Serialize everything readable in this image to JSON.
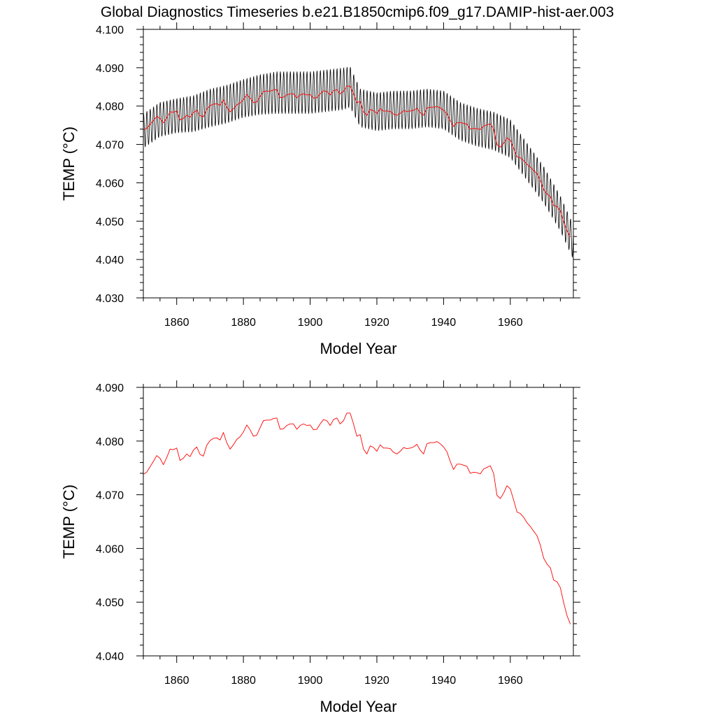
{
  "figure": {
    "title": "Global Diagnostics Timeseries b.e21.B1850cmip6.f09_g17.DAMIP-hist-aer.003"
  },
  "chart_data": [
    {
      "type": "line",
      "xlabel": "Model Year",
      "ylabel": "TEMP (°C)",
      "xlim": [
        1850,
        1978.9
      ],
      "ylim": [
        4.03,
        4.1
      ],
      "xticks": [
        1860,
        1880,
        1900,
        1920,
        1940,
        1960
      ],
      "xtick_labels": [
        "1860",
        "1880",
        "1900",
        "1920",
        "1940",
        "1960"
      ],
      "yticks": [
        4.03,
        4.04,
        4.05,
        4.06,
        4.07,
        4.08,
        4.09,
        4.1
      ],
      "ytick_labels": [
        "4.030",
        "4.040",
        "4.050",
        "4.060",
        "4.070",
        "4.080",
        "4.090",
        "4.100"
      ],
      "grid": false,
      "monthly_seasonal_amplitude_by_year": {
        "x": [
          1850,
          1860,
          1870,
          1880,
          1890,
          1900,
          1910,
          1915,
          1930,
          1940,
          1950,
          1960,
          1970,
          1978
        ],
        "values": [
          0.0045,
          0.0045,
          0.005,
          0.005,
          0.0055,
          0.0055,
          0.0055,
          0.005,
          0.005,
          0.005,
          0.005,
          0.005,
          0.0048,
          0.0045
        ]
      },
      "series": [
        {
          "color": "#000000",
          "style": "monthly",
          "x": [
            1850,
            1855,
            1860,
            1865,
            1870,
            1875,
            1880,
            1885,
            1890,
            1895,
            1900,
            1905,
            1910,
            1912,
            1915,
            1920,
            1925,
            1930,
            1935,
            1940,
            1945,
            1950,
            1955,
            1960,
            1965,
            1970,
            1975,
            1978.9
          ],
          "values": [
            4.0735,
            4.0765,
            4.0775,
            4.078,
            4.0795,
            4.0805,
            4.082,
            4.083,
            4.0835,
            4.0835,
            4.0835,
            4.084,
            4.0845,
            4.085,
            4.0795,
            4.0785,
            4.079,
            4.079,
            4.0795,
            4.079,
            4.076,
            4.0745,
            4.0735,
            4.0715,
            4.0655,
            4.0595,
            4.052,
            4.0445
          ]
        },
        {
          "color": "#ff0000",
          "style": "annual",
          "x": [
            1850,
            1851,
            1852,
            1853,
            1854,
            1855,
            1856,
            1857,
            1858,
            1859,
            1860,
            1861,
            1862,
            1863,
            1864,
            1865,
            1866,
            1867,
            1868,
            1869,
            1870,
            1871,
            1872,
            1873,
            1874,
            1875,
            1876,
            1877,
            1878,
            1879,
            1880,
            1881,
            1882,
            1883,
            1884,
            1885,
            1886,
            1887,
            1888,
            1889,
            1890,
            1891,
            1892,
            1893,
            1894,
            1895,
            1896,
            1897,
            1898,
            1899,
            1900,
            1901,
            1902,
            1903,
            1904,
            1905,
            1906,
            1907,
            1908,
            1909,
            1910,
            1911,
            1912,
            1913,
            1914,
            1915,
            1916,
            1917,
            1918,
            1919,
            1920,
            1921,
            1922,
            1923,
            1924,
            1925,
            1926,
            1927,
            1928,
            1929,
            1930,
            1931,
            1932,
            1933,
            1934,
            1935,
            1936,
            1937,
            1938,
            1939,
            1940,
            1941,
            1942,
            1943,
            1944,
            1945,
            1946,
            1947,
            1948,
            1949,
            1950,
            1951,
            1952,
            1953,
            1954,
            1955,
            1956,
            1957,
            1958,
            1959,
            1960,
            1961,
            1962,
            1963,
            1964,
            1965,
            1966,
            1967,
            1968,
            1969,
            1970,
            1971,
            1972,
            1973,
            1974,
            1975,
            1976,
            1977,
            1978
          ],
          "values": [
            4.0738,
            4.0742,
            4.0752,
            4.0762,
            4.0773,
            4.0768,
            4.0756,
            4.0769,
            4.0785,
            4.0784,
            4.0787,
            4.0764,
            4.0768,
            4.0776,
            4.0771,
            4.0783,
            4.0789,
            4.0775,
            4.0772,
            4.0792,
            4.0801,
            4.0805,
            4.0806,
            4.0802,
            4.0816,
            4.0797,
            4.0785,
            4.0793,
            4.0803,
            4.0808,
            4.0817,
            4.083,
            4.0821,
            4.0809,
            4.0811,
            4.0825,
            4.0838,
            4.0839,
            4.0839,
            4.0842,
            4.0843,
            4.0822,
            4.0823,
            4.0829,
            4.0832,
            4.0832,
            4.0822,
            4.0829,
            4.0832,
            4.0829,
            4.083,
            4.0821,
            4.0822,
            4.0832,
            4.084,
            4.0838,
            4.0829,
            4.084,
            4.0843,
            4.0832,
            4.0838,
            4.0852,
            4.0852,
            4.0832,
            4.0809,
            4.0812,
            4.0785,
            4.0776,
            4.0791,
            4.0788,
            4.0781,
            4.0793,
            4.0787,
            4.0787,
            4.0786,
            4.0779,
            4.0776,
            4.0781,
            4.0788,
            4.0786,
            4.0787,
            4.0789,
            4.0794,
            4.0783,
            4.0776,
            4.0795,
            4.0797,
            4.0797,
            4.0799,
            4.0795,
            4.0789,
            4.078,
            4.0762,
            4.0747,
            4.0757,
            4.0757,
            4.0755,
            4.0753,
            4.074,
            4.0742,
            4.0741,
            4.0739,
            4.0748,
            4.0751,
            4.0754,
            4.074,
            4.0699,
            4.0693,
            4.0703,
            4.0717,
            4.0711,
            4.069,
            4.0668,
            4.0665,
            4.0658,
            4.0648,
            4.0641,
            4.0632,
            4.0624,
            4.0606,
            4.0582,
            4.0571,
            4.0564,
            4.0541,
            4.0538,
            4.0527,
            4.0499,
            4.0475,
            4.0459
          ]
        }
      ]
    },
    {
      "type": "line",
      "xlabel": "Model Year",
      "ylabel": "TEMP (°C)",
      "xlim": [
        1850,
        1978.9
      ],
      "ylim": [
        4.04,
        4.09
      ],
      "xticks": [
        1860,
        1880,
        1900,
        1920,
        1940,
        1960
      ],
      "xtick_labels": [
        "1860",
        "1880",
        "1900",
        "1920",
        "1940",
        "1960"
      ],
      "yticks": [
        4.04,
        4.05,
        4.06,
        4.07,
        4.08,
        4.09
      ],
      "ytick_labels": [
        "4.040",
        "4.050",
        "4.060",
        "4.070",
        "4.080",
        "4.090"
      ],
      "grid": false,
      "series": [
        {
          "color": "#ff0000",
          "style": "annual",
          "x": [
            1850,
            1851,
            1852,
            1853,
            1854,
            1855,
            1856,
            1857,
            1858,
            1859,
            1860,
            1861,
            1862,
            1863,
            1864,
            1865,
            1866,
            1867,
            1868,
            1869,
            1870,
            1871,
            1872,
            1873,
            1874,
            1875,
            1876,
            1877,
            1878,
            1879,
            1880,
            1881,
            1882,
            1883,
            1884,
            1885,
            1886,
            1887,
            1888,
            1889,
            1890,
            1891,
            1892,
            1893,
            1894,
            1895,
            1896,
            1897,
            1898,
            1899,
            1900,
            1901,
            1902,
            1903,
            1904,
            1905,
            1906,
            1907,
            1908,
            1909,
            1910,
            1911,
            1912,
            1913,
            1914,
            1915,
            1916,
            1917,
            1918,
            1919,
            1920,
            1921,
            1922,
            1923,
            1924,
            1925,
            1926,
            1927,
            1928,
            1929,
            1930,
            1931,
            1932,
            1933,
            1934,
            1935,
            1936,
            1937,
            1938,
            1939,
            1940,
            1941,
            1942,
            1943,
            1944,
            1945,
            1946,
            1947,
            1948,
            1949,
            1950,
            1951,
            1952,
            1953,
            1954,
            1955,
            1956,
            1957,
            1958,
            1959,
            1960,
            1961,
            1962,
            1963,
            1964,
            1965,
            1966,
            1967,
            1968,
            1969,
            1970,
            1971,
            1972,
            1973,
            1974,
            1975,
            1976,
            1977,
            1978
          ],
          "values": [
            4.0738,
            4.0742,
            4.0752,
            4.0762,
            4.0773,
            4.0768,
            4.0756,
            4.0769,
            4.0785,
            4.0784,
            4.0787,
            4.0764,
            4.0768,
            4.0776,
            4.0771,
            4.0783,
            4.0789,
            4.0775,
            4.0772,
            4.0792,
            4.0801,
            4.0805,
            4.0806,
            4.0802,
            4.0816,
            4.0797,
            4.0785,
            4.0793,
            4.0803,
            4.0808,
            4.0817,
            4.083,
            4.0821,
            4.0809,
            4.0811,
            4.0825,
            4.0838,
            4.0839,
            4.0839,
            4.0842,
            4.0843,
            4.0822,
            4.0823,
            4.0829,
            4.0832,
            4.0832,
            4.0822,
            4.0829,
            4.0832,
            4.0829,
            4.083,
            4.0821,
            4.0822,
            4.0832,
            4.084,
            4.0838,
            4.0829,
            4.084,
            4.0843,
            4.0832,
            4.0838,
            4.0852,
            4.0852,
            4.0832,
            4.0809,
            4.0812,
            4.0785,
            4.0776,
            4.0791,
            4.0788,
            4.0781,
            4.0793,
            4.0787,
            4.0787,
            4.0786,
            4.0779,
            4.0776,
            4.0781,
            4.0788,
            4.0786,
            4.0787,
            4.0789,
            4.0794,
            4.0783,
            4.0776,
            4.0795,
            4.0797,
            4.0797,
            4.0799,
            4.0795,
            4.0789,
            4.078,
            4.0762,
            4.0747,
            4.0757,
            4.0757,
            4.0755,
            4.0753,
            4.074,
            4.0742,
            4.0741,
            4.0739,
            4.0748,
            4.0751,
            4.0754,
            4.074,
            4.0699,
            4.0693,
            4.0703,
            4.0717,
            4.0711,
            4.069,
            4.0668,
            4.0665,
            4.0658,
            4.0648,
            4.0641,
            4.0632,
            4.0624,
            4.0606,
            4.0582,
            4.0571,
            4.0564,
            4.0541,
            4.0538,
            4.0527,
            4.0499,
            4.0475,
            4.0459
          ]
        }
      ]
    }
  ]
}
